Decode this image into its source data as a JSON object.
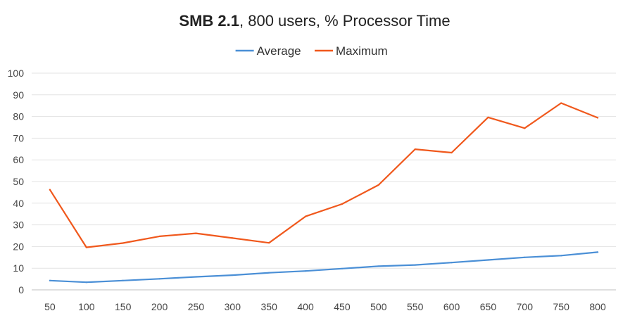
{
  "chart_data": {
    "type": "line",
    "title_bold": "SMB 2.1",
    "title_rest": ", 800 users, % Processor Time",
    "xlabel": "",
    "ylabel": "",
    "ylim": [
      0,
      100
    ],
    "yticks": [
      "0",
      "10",
      "20",
      "30",
      "40",
      "50",
      "60",
      "70",
      "80",
      "90",
      "100"
    ],
    "grid": true,
    "legend_position": "top",
    "categories": [
      "50",
      "100",
      "150",
      "200",
      "250",
      "300",
      "350",
      "400",
      "450",
      "500",
      "550",
      "600",
      "650",
      "700",
      "750",
      "800"
    ],
    "series": [
      {
        "name": "Average",
        "color": "#4a8fd6",
        "values": [
          4.3,
          3.5,
          4.3,
          5.1,
          6.0,
          6.8,
          7.9,
          8.7,
          9.8,
          10.9,
          11.5,
          12.6,
          13.8,
          15.0,
          15.8,
          17.4
        ]
      },
      {
        "name": "Maximum",
        "color": "#f0581c",
        "values": [
          46.2,
          19.6,
          21.6,
          24.7,
          26.1,
          23.9,
          21.7,
          33.9,
          39.6,
          48.4,
          64.9,
          63.3,
          79.6,
          74.6,
          86.2,
          79.4
        ]
      }
    ]
  }
}
